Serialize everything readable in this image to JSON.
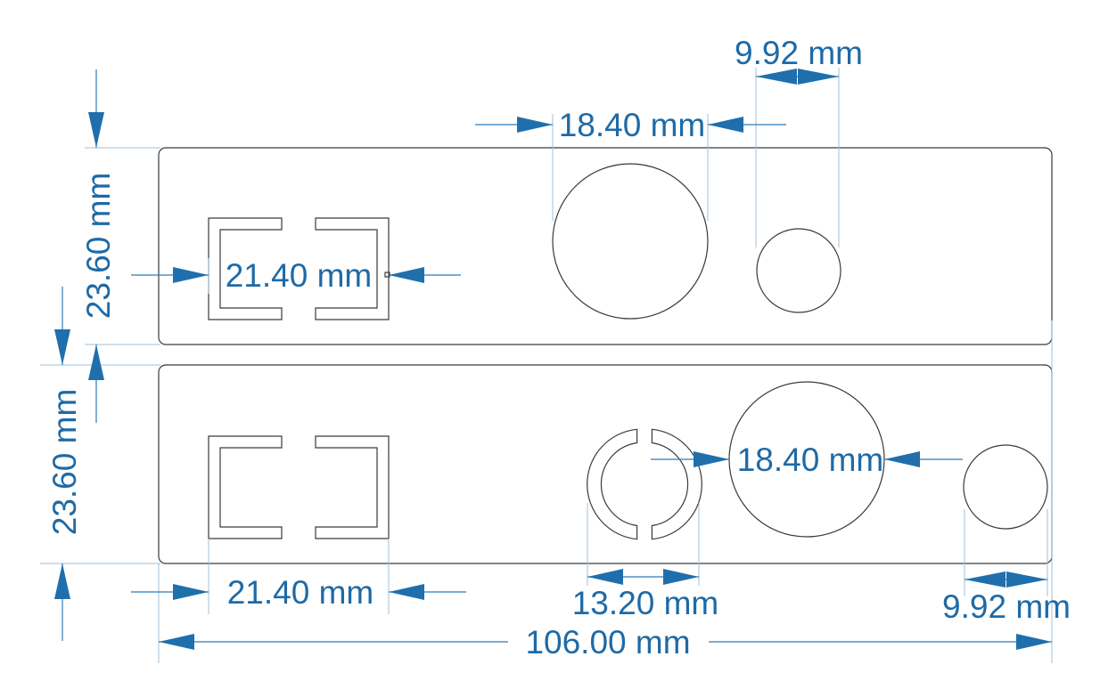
{
  "colors": {
    "outline": "#3a3a3a",
    "dimension": "#1e6aa6",
    "extension": "#9ec1dc",
    "background": "#ffffff"
  },
  "dimensions": {
    "top_small_hole": "9.92 mm",
    "top_large_hole": "18.40 mm",
    "top_height": "23.60 mm",
    "top_bracket_width": "21.40 mm",
    "bottom_height": "23.60 mm",
    "bottom_large_hole": "18.40 mm",
    "bottom_bracket_width": "21.40 mm",
    "bottom_ring": "13.20 mm",
    "bottom_small_hole": "9.92 mm",
    "total_width": "106.00 mm"
  }
}
